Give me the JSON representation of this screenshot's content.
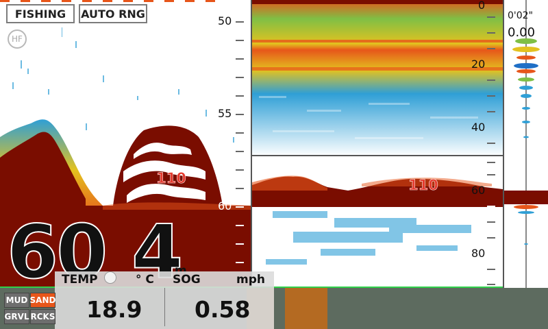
{
  "mode_buttons": {
    "fishing": "FISHING",
    "auto_range": "AUTO RNG"
  },
  "frequency_badge": "HF",
  "left_scale": {
    "ticks": [
      "50",
      "55",
      "60"
    ]
  },
  "mid_scale_top": {
    "ticks": [
      "0",
      "20",
      "40"
    ]
  },
  "mid_scale_bottom": {
    "ticks": [
      "60",
      "80"
    ]
  },
  "fish_labels": {
    "left": "110",
    "mid": "110"
  },
  "right_panel": {
    "time": "0'02\"",
    "value": "0.00"
  },
  "depth_readout": {
    "value": "60",
    "decimal": "4",
    "unit": "m"
  },
  "data_panel": {
    "temp_label": "TEMP",
    "temp_unit": "° C",
    "temp_value": "18.9",
    "sog_label": "SOG",
    "sog_unit": "mph",
    "sog_value": "0.58"
  },
  "bottom_type_buttons": [
    "MUD",
    "SAND",
    "GRVL",
    "RCKS"
  ],
  "colors": {
    "bottom_echo": "#7a0d00",
    "strong_echo": "#e7561a",
    "medium_echo": "#e3c21f",
    "weak_echo": "#2f9fd6",
    "panel_bg": "#dcdcdc"
  }
}
